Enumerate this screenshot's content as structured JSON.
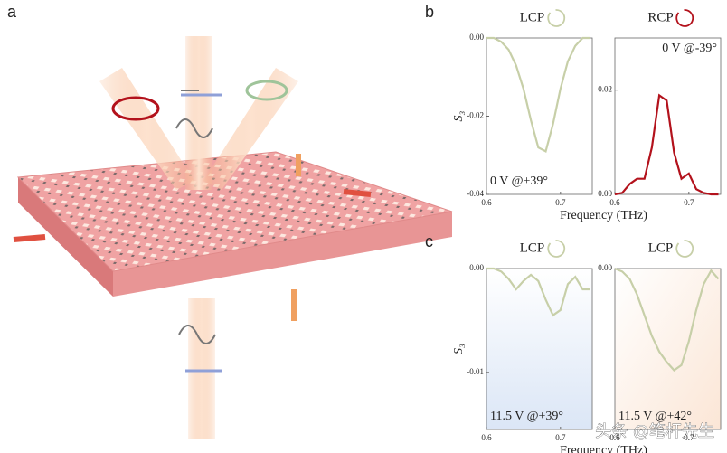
{
  "panel_labels": [
    "a",
    "b",
    "c"
  ],
  "watermark": "头条 @笔杆先生",
  "chart_data": [
    {
      "type": "line",
      "title": "LCP",
      "annotation": "0 V @+39°",
      "annotation_corner": "lower-left",
      "xlabel": "Frequency (THz)",
      "ylabel": "S₃",
      "color": "#c7cfa8",
      "x": [
        0.6,
        0.61,
        0.62,
        0.63,
        0.64,
        0.65,
        0.66,
        0.67,
        0.68,
        0.69,
        0.7,
        0.71,
        0.72,
        0.73,
        0.74
      ],
      "values": [
        0,
        0,
        -0.001,
        -0.003,
        -0.007,
        -0.013,
        -0.021,
        -0.028,
        -0.029,
        -0.022,
        -0.013,
        -0.006,
        -0.002,
        0,
        0
      ],
      "xlim": [
        0.6,
        0.743
      ],
      "ylim": [
        -0.04,
        0
      ],
      "xticks": [
        0.6,
        0.7
      ],
      "yticks": [
        {
          "value": 0,
          "label": "0.00"
        },
        -0.02,
        -0.04
      ]
    },
    {
      "type": "line",
      "title": "RCP",
      "annotation": "0 V @-39°",
      "annotation_corner": "upper-right",
      "color": "#b3121c",
      "x": [
        0.6,
        0.61,
        0.62,
        0.63,
        0.64,
        0.65,
        0.66,
        0.67,
        0.68,
        0.69,
        0.7,
        0.71,
        0.72,
        0.73,
        0.74
      ],
      "values": [
        0,
        0.0003,
        0.002,
        0.003,
        0.003,
        0.009,
        0.019,
        0.018,
        0.008,
        0.003,
        0.004,
        0.001,
        0.0003,
        0,
        0
      ],
      "xlim": [
        0.6,
        0.743
      ],
      "ylim": [
        0,
        0.03
      ],
      "xticks": [
        0.6,
        0.7
      ],
      "yticks": [
        {
          "value": 0,
          "label": "0.00"
        },
        0.02
      ]
    },
    {
      "type": "line",
      "title": "LCP",
      "annotation": "11.5 V @+39°",
      "annotation_corner": "lower-left",
      "xlabel": "Frequency (THz)",
      "ylabel": "S₃",
      "color": "#c7cfa8",
      "x": [
        0.6,
        0.61,
        0.62,
        0.63,
        0.64,
        0.65,
        0.66,
        0.67,
        0.68,
        0.69,
        0.7,
        0.71,
        0.72,
        0.73,
        0.74
      ],
      "values": [
        0,
        0,
        -0.0003,
        -0.001,
        -0.002,
        -0.0012,
        -0.0006,
        -0.0012,
        -0.003,
        -0.0045,
        -0.004,
        -0.0015,
        -0.0008,
        -0.002,
        -0.002
      ],
      "xlim": [
        0.6,
        0.743
      ],
      "ylim": [
        -0.0155,
        0
      ],
      "xticks": [
        0.6,
        0.7
      ],
      "yticks": [
        {
          "value": 0,
          "label": "0.00"
        },
        -0.01
      ]
    },
    {
      "type": "line",
      "title": "LCP",
      "annotation": "11.5 V @+42°",
      "annotation_corner": "lower-left",
      "color": "#c7cfa8",
      "x": [
        0.6,
        0.61,
        0.62,
        0.63,
        0.64,
        0.65,
        0.66,
        0.67,
        0.68,
        0.69,
        0.7,
        0.71,
        0.72,
        0.73,
        0.74
      ],
      "values": [
        0,
        -0.0003,
        -0.001,
        -0.0025,
        -0.0045,
        -0.0065,
        -0.008,
        -0.009,
        -0.0098,
        -0.0093,
        -0.007,
        -0.004,
        -0.0015,
        -0.0002,
        -0.001
      ],
      "xlim": [
        0.6,
        0.743
      ],
      "ylim": [
        -0.0155,
        0
      ],
      "xticks": [
        0.6,
        0.7
      ],
      "yticks": [
        {
          "value": 0,
          "label": "0.00"
        }
      ]
    }
  ]
}
